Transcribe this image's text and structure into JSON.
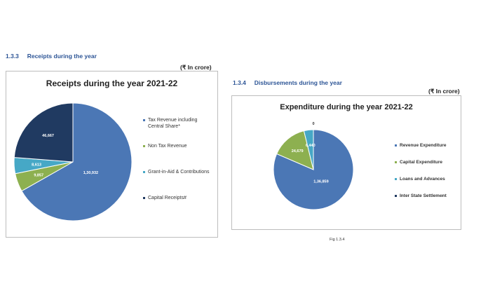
{
  "receipts_section": {
    "heading": "1.3.3     Receipts during the year",
    "unit": "(₹ In crore)"
  },
  "disbursements_section": {
    "heading": "1.3.4     Disbursements during the year",
    "unit": "(₹ In crore)",
    "fig_caption": "Fig 1.3.4"
  },
  "chart_data": [
    {
      "type": "pie",
      "title": "Receipts during the year 2021-22",
      "categories": [
        "Tax Revenue including Central Share*",
        "Non Tax Revenue",
        "Grant-in-Aid & Contributions",
        "Capital Receipts#"
      ],
      "values": [
        130932,
        9857,
        8613,
        46667
      ],
      "data_labels": [
        "1,30,932",
        "9,857",
        "8,613",
        "46,667"
      ],
      "colors": [
        "#4b77b5",
        "#8db050",
        "#46a8c6",
        "#203a61"
      ],
      "legend_position": "right"
    },
    {
      "type": "pie",
      "title": "Expenditure during the year 2021-22",
      "categories": [
        "Revenue Expenditure",
        "Capital Expenditure",
        "Loans and Advances",
        "Inter State Settlement"
      ],
      "values": [
        136859,
        24679,
        6440,
        0
      ],
      "data_labels": [
        "1,36,859",
        "24,679",
        "6,440",
        "0"
      ],
      "colors": [
        "#4b77b5",
        "#8db050",
        "#46a8c6",
        "#203a61"
      ],
      "legend_position": "right"
    }
  ]
}
